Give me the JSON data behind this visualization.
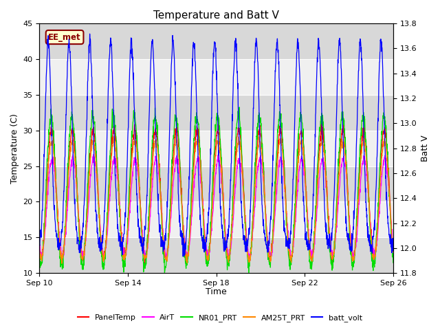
{
  "title": "Temperature and Batt V",
  "xlabel": "Time",
  "ylabel_left": "Temperature (C)",
  "ylabel_right": "Batt V",
  "annotation": "EE_met",
  "left_ylim": [
    10,
    45
  ],
  "right_ylim": [
    11.8,
    13.8
  ],
  "left_yticks": [
    10,
    15,
    20,
    25,
    30,
    35,
    40,
    45
  ],
  "right_yticks": [
    11.8,
    12.0,
    12.2,
    12.4,
    12.6,
    12.8,
    13.0,
    13.2,
    13.4,
    13.6,
    13.8
  ],
  "xtick_labels": [
    "Sep 10",
    "Sep 14",
    "Sep 18",
    "Sep 22",
    "Sep 26"
  ],
  "xtick_positions": [
    0,
    4,
    8,
    12,
    16
  ],
  "colors": {
    "PanelTemp": "#ff0000",
    "AirT": "#ff00ff",
    "NR01_PRT": "#00dd00",
    "AM25T_PRT": "#ff8800",
    "batt_volt": "#0000ff"
  },
  "legend": [
    "PanelTemp",
    "AirT",
    "NR01_PRT",
    "AM25T_PRT",
    "batt_volt"
  ],
  "legend_colors": [
    "#ff0000",
    "#ff00ff",
    "#00dd00",
    "#ff8800",
    "#0000ff"
  ],
  "background_color": "#ffffff",
  "plot_bg_light": "#f0f0f0",
  "plot_bg_dark": "#d8d8d8",
  "grid_color": "#ffffff",
  "n_days": 17,
  "n_per_day": 96,
  "temp_base_min": 11.5,
  "temp_base_max": 30.0,
  "batt_night": 12.0,
  "batt_day_peak": 13.65,
  "figsize": [
    6.4,
    4.8
  ],
  "dpi": 100
}
